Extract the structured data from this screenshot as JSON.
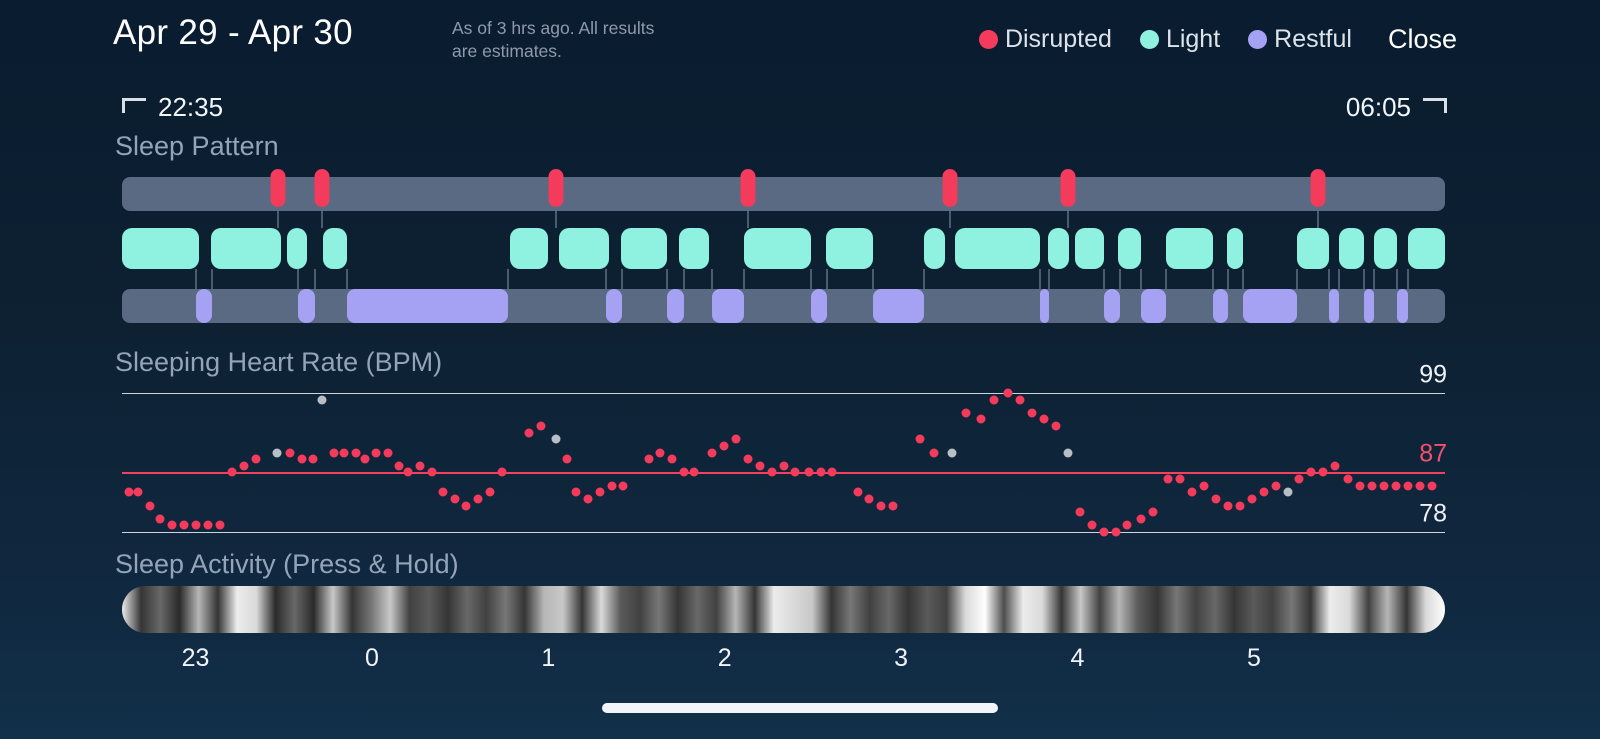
{
  "header": {
    "date_range": "Apr 29 - Apr 30",
    "subtitle": "As of 3 hrs ago. All results are estimates.",
    "legend": [
      {
        "label": "Disrupted",
        "color": "#f43b5c"
      },
      {
        "label": "Light",
        "color": "#8ff2e0"
      },
      {
        "label": "Restful",
        "color": "#a6a2f3"
      }
    ],
    "close_label": "Close"
  },
  "session": {
    "start_time": "22:35",
    "end_time": "06:05"
  },
  "sleep_pattern": {
    "title": "Sleep Pattern",
    "track_color": "#596a82",
    "disrupted_marks": [
      0.118,
      0.151,
      0.328,
      0.473,
      0.626,
      0.715,
      0.904
    ],
    "light_segments": [
      [
        0.0,
        0.058
      ],
      [
        0.067,
        0.12
      ],
      [
        0.125,
        0.14
      ],
      [
        0.152,
        0.17
      ],
      [
        0.293,
        0.322
      ],
      [
        0.33,
        0.368
      ],
      [
        0.377,
        0.412
      ],
      [
        0.421,
        0.444
      ],
      [
        0.47,
        0.521
      ],
      [
        0.532,
        0.568
      ],
      [
        0.606,
        0.622
      ],
      [
        0.63,
        0.694
      ],
      [
        0.7,
        0.716
      ],
      [
        0.72,
        0.742
      ],
      [
        0.753,
        0.77
      ],
      [
        0.789,
        0.825
      ],
      [
        0.835,
        0.847
      ],
      [
        0.888,
        0.912
      ],
      [
        0.92,
        0.939
      ],
      [
        0.946,
        0.964
      ],
      [
        0.972,
        1.0
      ]
    ],
    "restful_segments": [
      [
        0.056,
        0.068
      ],
      [
        0.133,
        0.146
      ],
      [
        0.17,
        0.292
      ],
      [
        0.366,
        0.378
      ],
      [
        0.412,
        0.425
      ],
      [
        0.446,
        0.47
      ],
      [
        0.521,
        0.533
      ],
      [
        0.568,
        0.606
      ],
      [
        0.694,
        0.701
      ],
      [
        0.742,
        0.754
      ],
      [
        0.77,
        0.789
      ],
      [
        0.825,
        0.836
      ],
      [
        0.847,
        0.888
      ],
      [
        0.912,
        0.92
      ],
      [
        0.939,
        0.946
      ],
      [
        0.964,
        0.972
      ]
    ]
  },
  "heart_rate": {
    "title": "Sleeping Heart Rate (BPM)",
    "lines": {
      "max": 99,
      "avg": 87,
      "min": 78
    },
    "colors": {
      "dot": "#f43b5c",
      "dot_alt": "#b7bec6",
      "avg_line": "#f4405f"
    },
    "points": [
      [
        0.005,
        84
      ],
      [
        0.012,
        84
      ],
      [
        0.021,
        82
      ],
      [
        0.029,
        80
      ],
      [
        0.038,
        79
      ],
      [
        0.047,
        79
      ],
      [
        0.056,
        79
      ],
      [
        0.065,
        79
      ],
      [
        0.074,
        79
      ],
      [
        0.083,
        87
      ],
      [
        0.092,
        88
      ],
      [
        0.101,
        89
      ],
      [
        0.117,
        90,
        1
      ],
      [
        0.127,
        90
      ],
      [
        0.136,
        89
      ],
      [
        0.144,
        89
      ],
      [
        0.151,
        98,
        1
      ],
      [
        0.16,
        90
      ],
      [
        0.168,
        90
      ],
      [
        0.177,
        90
      ],
      [
        0.184,
        89
      ],
      [
        0.192,
        90
      ],
      [
        0.201,
        90
      ],
      [
        0.209,
        88
      ],
      [
        0.216,
        87
      ],
      [
        0.225,
        88
      ],
      [
        0.234,
        87
      ],
      [
        0.243,
        84
      ],
      [
        0.252,
        83
      ],
      [
        0.26,
        82
      ],
      [
        0.269,
        83
      ],
      [
        0.278,
        84
      ],
      [
        0.287,
        87
      ],
      [
        0.308,
        93
      ],
      [
        0.317,
        94
      ],
      [
        0.328,
        92,
        1
      ],
      [
        0.336,
        89
      ],
      [
        0.343,
        84
      ],
      [
        0.352,
        83
      ],
      [
        0.361,
        84
      ],
      [
        0.37,
        85
      ],
      [
        0.379,
        85
      ],
      [
        0.398,
        89
      ],
      [
        0.407,
        90
      ],
      [
        0.416,
        89
      ],
      [
        0.425,
        87
      ],
      [
        0.432,
        87
      ],
      [
        0.446,
        90
      ],
      [
        0.455,
        91
      ],
      [
        0.464,
        92
      ],
      [
        0.473,
        89
      ],
      [
        0.482,
        88
      ],
      [
        0.491,
        87
      ],
      [
        0.5,
        88
      ],
      [
        0.509,
        87
      ],
      [
        0.519,
        87
      ],
      [
        0.528,
        87
      ],
      [
        0.537,
        87
      ],
      [
        0.556,
        84
      ],
      [
        0.565,
        83
      ],
      [
        0.574,
        82
      ],
      [
        0.583,
        82
      ],
      [
        0.603,
        92
      ],
      [
        0.614,
        90
      ],
      [
        0.627,
        90,
        1
      ],
      [
        0.638,
        96
      ],
      [
        0.649,
        95
      ],
      [
        0.659,
        98
      ],
      [
        0.67,
        99
      ],
      [
        0.679,
        98
      ],
      [
        0.688,
        96
      ],
      [
        0.697,
        95
      ],
      [
        0.706,
        94
      ],
      [
        0.715,
        90,
        1
      ],
      [
        0.724,
        81
      ],
      [
        0.733,
        79
      ],
      [
        0.742,
        78
      ],
      [
        0.751,
        78
      ],
      [
        0.76,
        79
      ],
      [
        0.77,
        80
      ],
      [
        0.779,
        81
      ],
      [
        0.791,
        86
      ],
      [
        0.8,
        86
      ],
      [
        0.809,
        84
      ],
      [
        0.818,
        85
      ],
      [
        0.827,
        83
      ],
      [
        0.836,
        82
      ],
      [
        0.845,
        82
      ],
      [
        0.854,
        83
      ],
      [
        0.863,
        84
      ],
      [
        0.872,
        85
      ],
      [
        0.881,
        84,
        1
      ],
      [
        0.89,
        86
      ],
      [
        0.899,
        87
      ],
      [
        0.908,
        87
      ],
      [
        0.917,
        88
      ],
      [
        0.927,
        86
      ],
      [
        0.936,
        85
      ],
      [
        0.945,
        85
      ],
      [
        0.954,
        85
      ],
      [
        0.963,
        85
      ],
      [
        0.972,
        85
      ],
      [
        0.981,
        85
      ],
      [
        0.99,
        85
      ]
    ]
  },
  "activity": {
    "title": "Sleep Activity (Press & Hold)",
    "hours": [
      {
        "label": "23",
        "f": 0.0556
      },
      {
        "label": "0",
        "f": 0.1889
      },
      {
        "label": "1",
        "f": 0.3222
      },
      {
        "label": "2",
        "f": 0.4556
      },
      {
        "label": "3",
        "f": 0.5889
      },
      {
        "label": "4",
        "f": 0.7222
      },
      {
        "label": "5",
        "f": 0.8556
      }
    ],
    "intensity": [
      0.95,
      0.35,
      0.55,
      0.3,
      0.8,
      0.35,
      0.95,
      0.9,
      0.3,
      0.55,
      0.3,
      0.85,
      0.35,
      0.6,
      0.85,
      0.4,
      0.5,
      0.35,
      0.55,
      0.4,
      0.6,
      0.35,
      0.8,
      0.85,
      0.35,
      0.9,
      0.5,
      0.4,
      0.6,
      0.35,
      0.55,
      0.4,
      0.8,
      0.35,
      0.95,
      0.9,
      0.85,
      0.35,
      0.6,
      0.4,
      0.55,
      0.35,
      0.5,
      0.4,
      0.9,
      1.0,
      0.45,
      0.95,
      0.9,
      0.35,
      0.85,
      0.4,
      0.8,
      0.5,
      0.35,
      0.6,
      0.4,
      0.55,
      0.35,
      0.5,
      0.4,
      0.6,
      0.35,
      0.95,
      0.9,
      0.4,
      0.8,
      0.35,
      0.9,
      1.0
    ]
  }
}
